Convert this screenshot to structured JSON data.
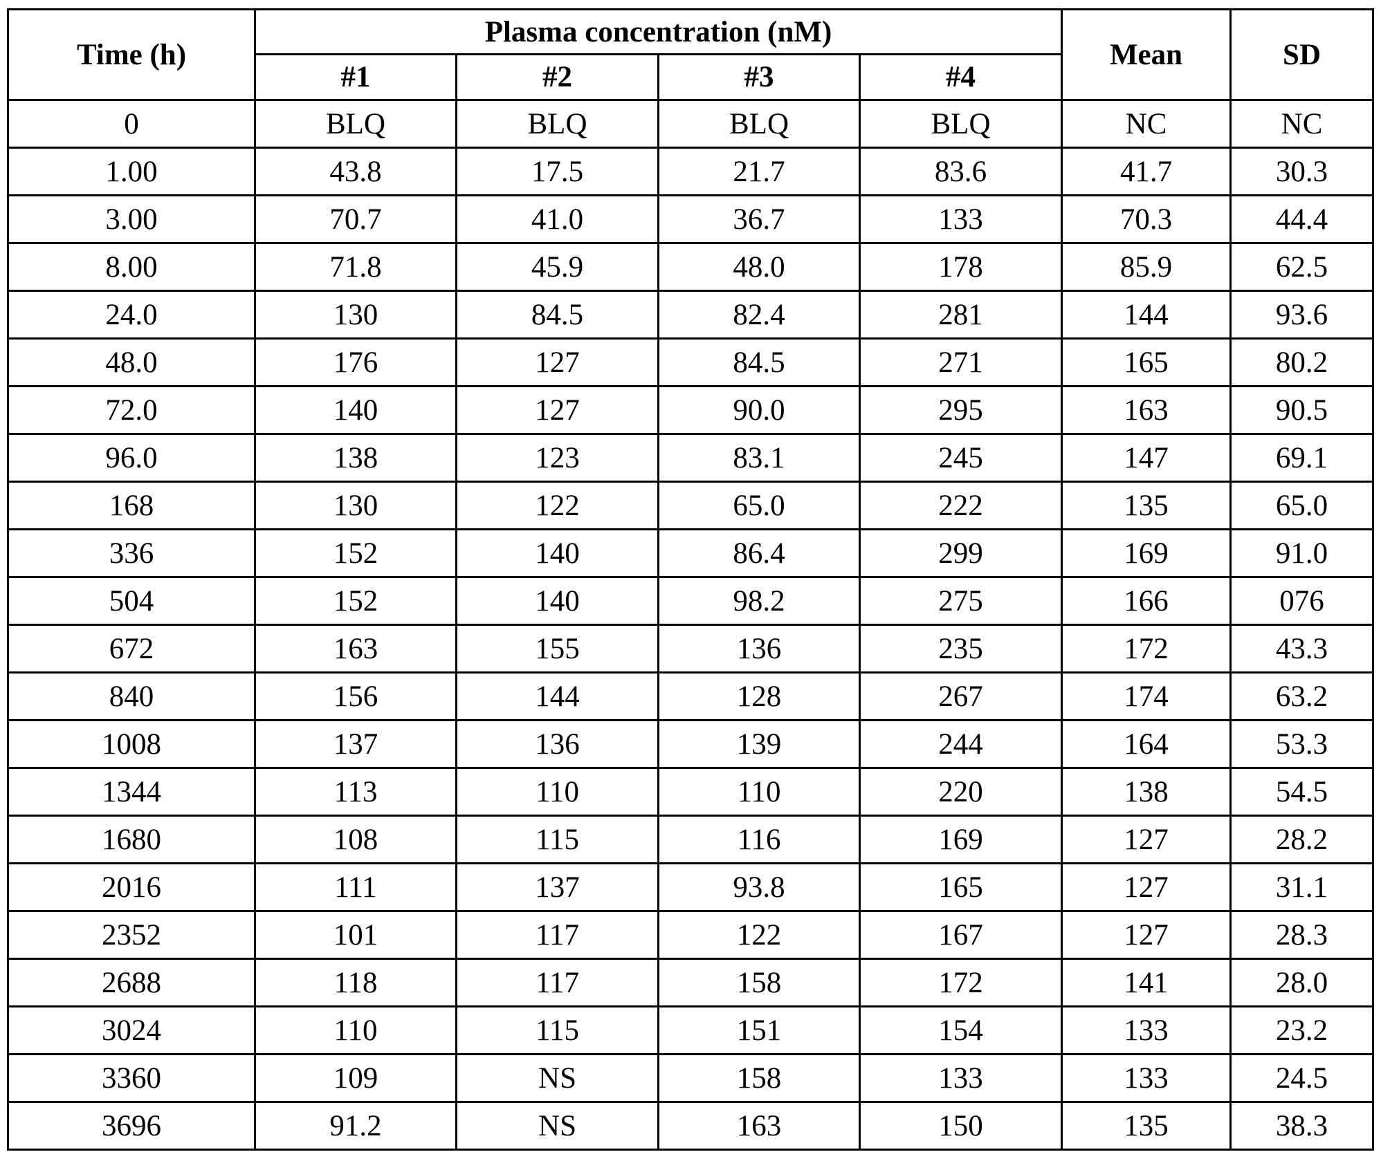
{
  "table": {
    "headers": {
      "time": "Time (h)",
      "group": "Plasma concentration (nM)",
      "subjects": [
        "#1",
        "#2",
        "#3",
        "#4"
      ],
      "mean": "Mean",
      "sd": "SD"
    },
    "rows": [
      [
        "0",
        "BLQ",
        "BLQ",
        "BLQ",
        "BLQ",
        "NC",
        "NC"
      ],
      [
        "1.00",
        "43.8",
        "17.5",
        "21.7",
        "83.6",
        "41.7",
        "30.3"
      ],
      [
        "3.00",
        "70.7",
        "41.0",
        "36.7",
        "133",
        "70.3",
        "44.4"
      ],
      [
        "8.00",
        "71.8",
        "45.9",
        "48.0",
        "178",
        "85.9",
        "62.5"
      ],
      [
        "24.0",
        "130",
        "84.5",
        "82.4",
        "281",
        "144",
        "93.6"
      ],
      [
        "48.0",
        "176",
        "127",
        "84.5",
        "271",
        "165",
        "80.2"
      ],
      [
        "72.0",
        "140",
        "127",
        "90.0",
        "295",
        "163",
        "90.5"
      ],
      [
        "96.0",
        "138",
        "123",
        "83.1",
        "245",
        "147",
        "69.1"
      ],
      [
        "168",
        "130",
        "122",
        "65.0",
        "222",
        "135",
        "65.0"
      ],
      [
        "336",
        "152",
        "140",
        "86.4",
        "299",
        "169",
        "91.0"
      ],
      [
        "504",
        "152",
        "140",
        "98.2",
        "275",
        "166",
        "076"
      ],
      [
        "672",
        "163",
        "155",
        "136",
        "235",
        "172",
        "43.3"
      ],
      [
        "840",
        "156",
        "144",
        "128",
        "267",
        "174",
        "63.2"
      ],
      [
        "1008",
        "137",
        "136",
        "139",
        "244",
        "164",
        "53.3"
      ],
      [
        "1344",
        "113",
        "110",
        "110",
        "220",
        "138",
        "54.5"
      ],
      [
        "1680",
        "108",
        "115",
        "116",
        "169",
        "127",
        "28.2"
      ],
      [
        "2016",
        "111",
        "137",
        "93.8",
        "165",
        "127",
        "31.1"
      ],
      [
        "2352",
        "101",
        "117",
        "122",
        "167",
        "127",
        "28.3"
      ],
      [
        "2688",
        "118",
        "117",
        "158",
        "172",
        "141",
        "28.0"
      ],
      [
        "3024",
        "110",
        "115",
        "151",
        "154",
        "133",
        "23.2"
      ],
      [
        "3360",
        "109",
        "NS",
        "158",
        "133",
        "133",
        "24.5"
      ],
      [
        "3696",
        "91.2",
        "NS",
        "163",
        "150",
        "135",
        "38.3"
      ]
    ]
  }
}
